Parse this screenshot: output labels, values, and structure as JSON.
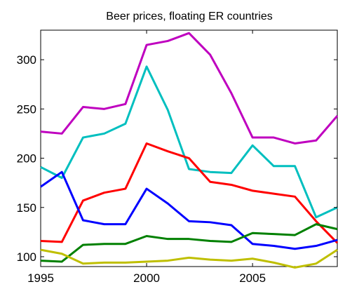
{
  "chart_data": {
    "type": "line",
    "title": "Beer prices, floating ER countries",
    "x": [
      1995,
      1996,
      1997,
      1998,
      1999,
      2000,
      2001,
      2002,
      2003,
      2004,
      2005,
      2006,
      2007,
      2008,
      2009
    ],
    "series": [
      {
        "color": "#bf00bf",
        "values": [
          227,
          225,
          252,
          250,
          255,
          315,
          319,
          327,
          305,
          266,
          221,
          221,
          215,
          218,
          243
        ]
      },
      {
        "color": "#00bfbf",
        "values": [
          191,
          180,
          221,
          225,
          235,
          293,
          249,
          189,
          186,
          185,
          213,
          192,
          192,
          140,
          150
        ]
      },
      {
        "color": "#ff0000",
        "values": [
          116,
          115,
          157,
          165,
          169,
          215,
          207,
          200,
          176,
          173,
          167,
          164,
          161,
          136,
          114
        ]
      },
      {
        "color": "#0000ff",
        "values": [
          171,
          186,
          137,
          133,
          133,
          169,
          154,
          136,
          135,
          132,
          113,
          111,
          108,
          111,
          117
        ]
      },
      {
        "color": "#008000",
        "values": [
          96,
          95,
          112,
          113,
          113,
          121,
          118,
          118,
          116,
          115,
          124,
          123,
          122,
          133,
          128
        ]
      },
      {
        "color": "#bfbf00",
        "values": [
          107,
          103,
          93,
          94,
          94,
          95,
          96,
          99,
          97,
          96,
          98,
          94,
          89,
          93,
          107
        ]
      }
    ],
    "xlim": [
      1995,
      2009
    ],
    "xticks": [
      1995,
      2000,
      2005
    ],
    "ylim": [
      90,
      330
    ],
    "yticks": [
      100,
      150,
      200,
      250,
      300
    ]
  }
}
